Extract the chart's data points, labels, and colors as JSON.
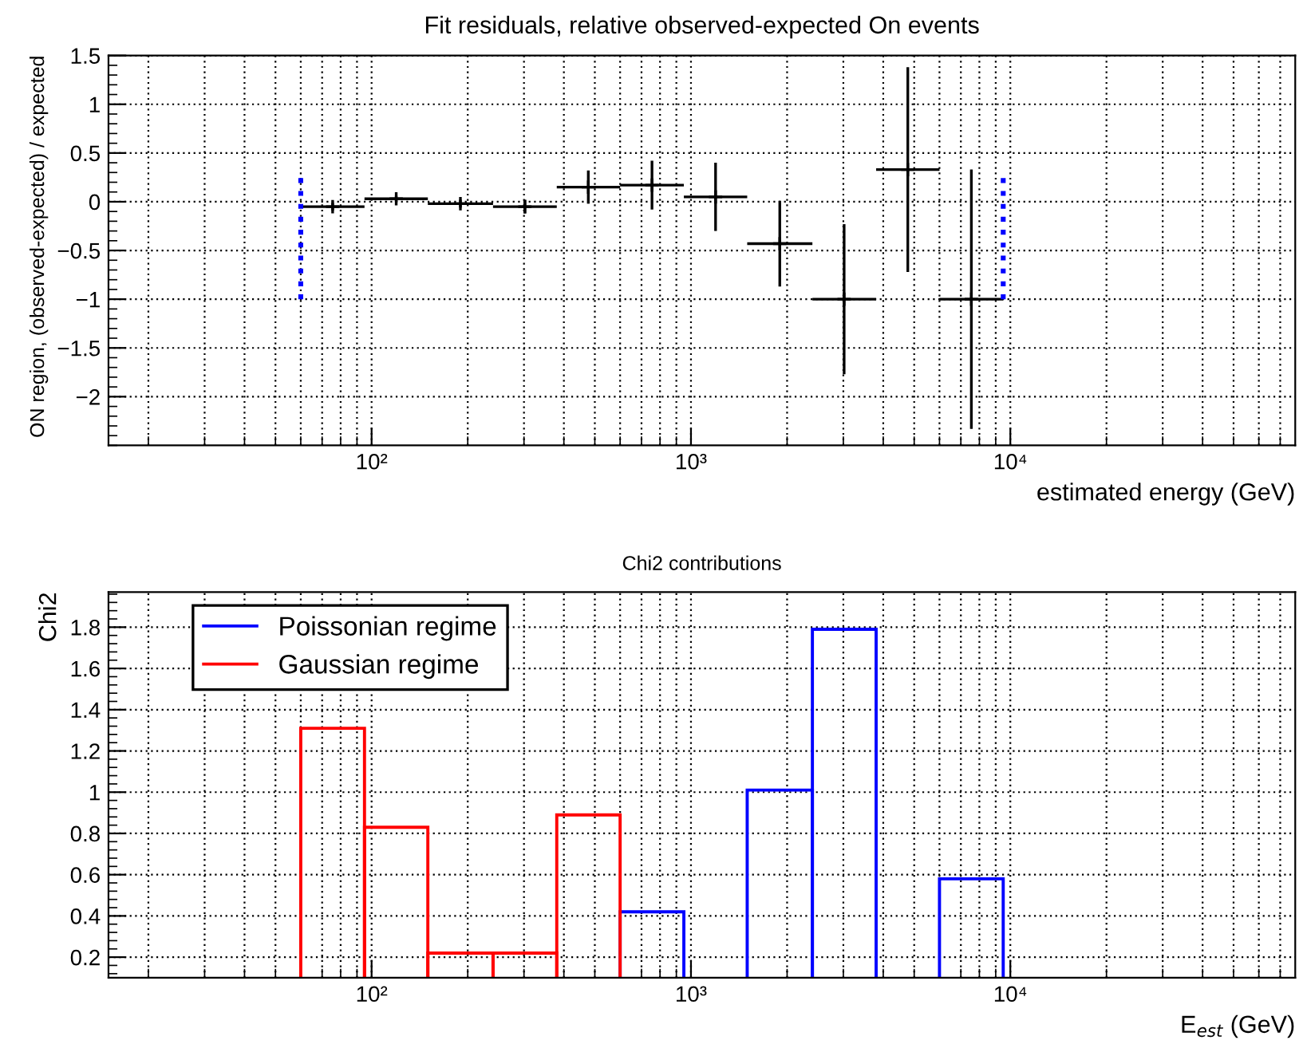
{
  "chart_data": [
    {
      "type": "scatter",
      "title": "Fit residuals, relative observed-expected On events",
      "xlabel": "estimated energy (GeV)",
      "ylabel": "ON region, (observed-expected) / expected",
      "log": "x",
      "xlim": [
        15,
        78000
      ],
      "xticks": [
        {
          "value": 100,
          "label": "10²"
        },
        {
          "value": 1000,
          "label": "10³"
        },
        {
          "value": 10000,
          "label": "10⁴"
        }
      ],
      "ylim": [
        -2.5,
        1.5
      ],
      "yticks": [
        {
          "value": -2,
          "label": "−2"
        },
        {
          "value": -1.5,
          "label": "−1.5"
        },
        {
          "value": -1,
          "label": "−1"
        },
        {
          "value": -0.5,
          "label": "−0.5"
        },
        0,
        0.5,
        1,
        1.5
      ],
      "grid": true,
      "marker": "cross",
      "series": [
        {
          "type": "scatter",
          "color": "#000000",
          "x": [
            75.5,
            119.4,
            189.7,
            302,
            477,
            755,
            1194,
            1897,
            3017,
            4775,
            7550
          ],
          "values": [
            -0.05,
            0.03,
            -0.02,
            -0.05,
            0.15,
            0.17,
            0.05,
            -0.43,
            -1.0,
            0.33,
            -1.0
          ],
          "errors": [
            0.04,
            0.03,
            0.04,
            0.07,
            0.17,
            0.25,
            0.35,
            0.44,
            0.77,
            1.05,
            1.33
          ],
          "xerrors": [
            [
              60,
              95
            ],
            [
              95,
              150
            ],
            [
              150,
              240
            ],
            [
              240,
              380
            ],
            [
              380,
              600
            ],
            [
              600,
              950
            ],
            [
              950,
              1500
            ],
            [
              1500,
              2400
            ],
            [
              2400,
              3800
            ],
            [
              3800,
              6000
            ],
            [
              6000,
              9500
            ]
          ]
        },
        {
          "type": "line",
          "color": "#0000ff",
          "line_style": "dotted",
          "marker": "none",
          "x": [
            60,
            60
          ],
          "values": [
            -1.0,
            0.25
          ]
        },
        {
          "type": "line",
          "color": "#0000ff",
          "line_style": "dotted",
          "marker": "none",
          "x": [
            9500,
            9500
          ],
          "values": [
            -1.0,
            0.25
          ]
        }
      ]
    },
    {
      "type": "histogram",
      "title": "Chi2 contributions",
      "xlabel": "E$_{est}$ (GeV)",
      "ylabel": "Chi2",
      "log": "x",
      "xlim": [
        15,
        78000
      ],
      "xticks": [
        {
          "value": 100,
          "label": "10²"
        },
        {
          "value": 1000,
          "label": "10³"
        },
        {
          "value": 10000,
          "label": "10⁴"
        }
      ],
      "ylim": [
        0.1,
        1.97
      ],
      "yticks": [
        0.2,
        0.4,
        0.6,
        0.8,
        1,
        1.2,
        1.4,
        1.6,
        1.8
      ],
      "grid": true,
      "legend": "top left",
      "bins": [
        60,
        95,
        150,
        240,
        380,
        600,
        950,
        1500,
        2400,
        3800,
        6000,
        9500
      ],
      "series": [
        {
          "name": "Poissonian regime",
          "color": "#0000ff",
          "values": [
            null,
            null,
            null,
            null,
            null,
            0.42,
            null,
            1.01,
            1.79,
            null,
            0.58
          ]
        },
        {
          "name": "Gaussian regime",
          "color": "#ff0000",
          "values": [
            1.31,
            0.83,
            0.22,
            0.22,
            0.89,
            null,
            null,
            null,
            null,
            null,
            null
          ]
        }
      ]
    }
  ]
}
